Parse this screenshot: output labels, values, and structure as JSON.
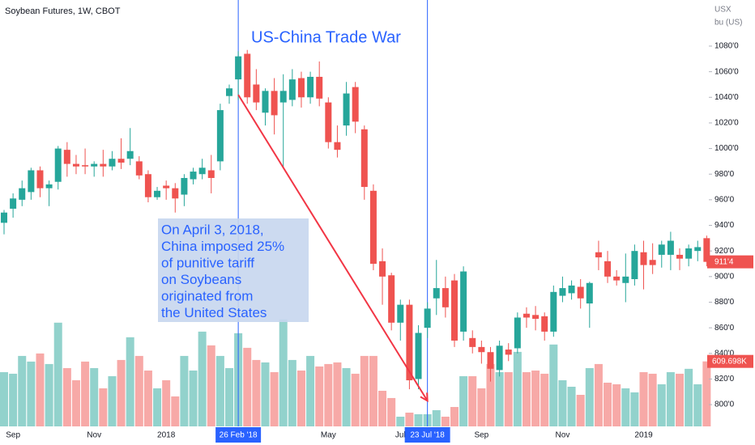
{
  "chart_data": {
    "type": "candlestick",
    "title": "Soybean Futures, 1W, CBOT",
    "unit_label": [
      "USX",
      "bu (US)"
    ],
    "categories": [
      null,
      "Sep",
      null,
      null,
      null,
      null,
      null,
      null,
      null,
      null,
      "Nov",
      null,
      null,
      null,
      null,
      null,
      null,
      null,
      "2018",
      null,
      null,
      null,
      null,
      null,
      null,
      null,
      "26 Feb '18",
      null,
      null,
      null,
      null,
      null,
      null,
      null,
      null,
      null,
      "May",
      null,
      null,
      null,
      null,
      null,
      null,
      null,
      "Jul",
      null,
      null,
      "23 Jul '18",
      null,
      null,
      null,
      null,
      null,
      "Sep",
      null,
      null,
      null,
      null,
      null,
      null,
      null,
      null,
      "Nov",
      null,
      null,
      null,
      null,
      null,
      null,
      null,
      null,
      "2019",
      null,
      null,
      null,
      null,
      null,
      null,
      null
    ],
    "open": [
      942,
      953,
      960,
      966,
      983,
      969,
      974,
      999,
      988,
      987,
      986,
      988,
      986,
      992,
      992,
      990,
      980,
      962,
      971,
      969,
      964,
      976,
      980,
      983,
      990,
      1041,
      1054,
      1074,
      1050,
      1028,
      1045,
      1036,
      1038,
      1055,
      1040,
      1056,
      1036,
      1005,
      1018,
      1048,
      1015,
      967,
      912,
      901,
      864,
      878,
      820,
      860,
      883,
      891,
      897,
      857,
      852,
      845,
      841,
      827,
      843,
      844,
      871,
      870,
      869,
      857,
      885,
      887,
      892,
      879,
      919,
      912,
      900,
      895,
      898,
      919,
      913,
      917,
      917,
      917,
      914,
      920,
      930
    ],
    "high": [
      952,
      965,
      975,
      985,
      986,
      975,
      1002,
      1005,
      995,
      1000,
      990,
      999,
      998,
      1008,
      1016,
      994,
      983,
      970,
      975,
      973,
      980,
      985,
      992,
      995,
      1035,
      1050,
      1076,
      1077,
      1062,
      1047,
      1055,
      1058,
      1062,
      1060,
      1060,
      1068,
      1040,
      1018,
      1052,
      1052,
      1018,
      972,
      922,
      903,
      882,
      882,
      862,
      880,
      913,
      900,
      902,
      908,
      858,
      850,
      845,
      850,
      848,
      872,
      876,
      877,
      872,
      893,
      900,
      897,
      898,
      896,
      928,
      920,
      905,
      918,
      925,
      928,
      926,
      928,
      935,
      922,
      925,
      928,
      932
    ],
    "low": [
      933,
      946,
      955,
      960,
      962,
      955,
      968,
      978,
      980,
      980,
      978,
      978,
      983,
      984,
      987,
      976,
      958,
      960,
      960,
      950,
      955,
      972,
      976,
      965,
      983,
      1035,
      1038,
      1035,
      1030,
      1018,
      1011,
      985,
      1033,
      1032,
      1035,
      1033,
      1000,
      993,
      1010,
      1012,
      960,
      905,
      878,
      858,
      850,
      812,
      812,
      852,
      870,
      868,
      845,
      850,
      840,
      832,
      818,
      822,
      834,
      840,
      860,
      858,
      850,
      853,
      880,
      882,
      875,
      860,
      905,
      895,
      893,
      880,
      893,
      890,
      902,
      907,
      905,
      905,
      908,
      912,
      908
    ],
    "close": [
      950,
      961,
      969,
      983,
      969,
      972,
      1000,
      988,
      986,
      986,
      988,
      986,
      992,
      989,
      998,
      979,
      962,
      967,
      969,
      961,
      977,
      982,
      985,
      977,
      1030,
      1047,
      1072,
      1040,
      1036,
      1045,
      1026,
      1045,
      1054,
      1040,
      1056,
      1039,
      1005,
      999,
      1043,
      1021,
      970,
      910,
      900,
      864,
      878,
      819,
      856,
      875,
      891,
      876,
      850,
      904,
      845,
      841,
      828,
      846,
      839,
      868,
      868,
      867,
      857,
      888,
      891,
      893,
      883,
      895,
      915,
      900,
      897,
      900,
      920,
      909,
      909,
      925,
      928,
      914,
      922,
      923,
      911.5
    ],
    "volume": [
      509000,
      494000,
      661000,
      608000,
      684000,
      585000,
      973000,
      547000,
      433000,
      608000,
      547000,
      357000,
      471000,
      623000,
      836000,
      661000,
      524000,
      357000,
      433000,
      281000,
      661000,
      524000,
      889000,
      760000,
      661000,
      547000,
      874000,
      737000,
      623000,
      600000,
      509000,
      1003000,
      623000,
      524000,
      661000,
      562000,
      585000,
      600000,
      547000,
      494000,
      661000,
      661000,
      334000,
      266000,
      91000,
      129000,
      114000,
      114000,
      152000,
      91000,
      182000,
      471000,
      471000,
      357000,
      585000,
      509000,
      509000,
      699000,
      509000,
      524000,
      494000,
      768000,
      433000,
      372000,
      296000,
      547000,
      585000,
      410000,
      395000,
      357000,
      319000,
      509000,
      494000,
      395000,
      509000,
      494000,
      540000,
      395000,
      609698
    ],
    "up_color": "#26a69a",
    "down_color": "#ef5350",
    "ylim": [
      783,
      1116
    ],
    "yticks": [
      {
        "value": 800,
        "label": "800'0"
      },
      {
        "value": 820,
        "label": "820'0"
      },
      {
        "value": 840,
        "label": "840'0"
      },
      {
        "value": 860,
        "label": "860'0"
      },
      {
        "value": 880,
        "label": "880'0"
      },
      {
        "value": 900,
        "label": "900'0"
      },
      {
        "value": 920,
        "label": "920'0"
      },
      {
        "value": 940,
        "label": "940'0"
      },
      {
        "value": 960,
        "label": "960'0"
      },
      {
        "value": 980,
        "label": "980'0"
      },
      {
        "value": 1000,
        "label": "1000'0"
      },
      {
        "value": 1020,
        "label": "1020'0"
      },
      {
        "value": 1040,
        "label": "1040'0"
      },
      {
        "value": 1060,
        "label": "1060'0"
      },
      {
        "value": 1080,
        "label": "1080'0"
      }
    ],
    "vlim": [
      0,
      4000000
    ],
    "grid": false,
    "last_price_label": "911'4",
    "last_volume_label": "609.698K",
    "vlines": [
      26,
      47
    ],
    "annotation_color": "#2962ff",
    "headline": "US-China Trade War",
    "note_lines": [
      "On April 3, 2018,",
      "China imposed 25%",
      "of punitive tariff",
      "on Soybeans",
      "originated from",
      "the United States"
    ],
    "arrow": {
      "color": "#f23645",
      "from": {
        "index": 26,
        "price": 1042
      },
      "to": {
        "index": 47,
        "price": 803
      }
    }
  }
}
